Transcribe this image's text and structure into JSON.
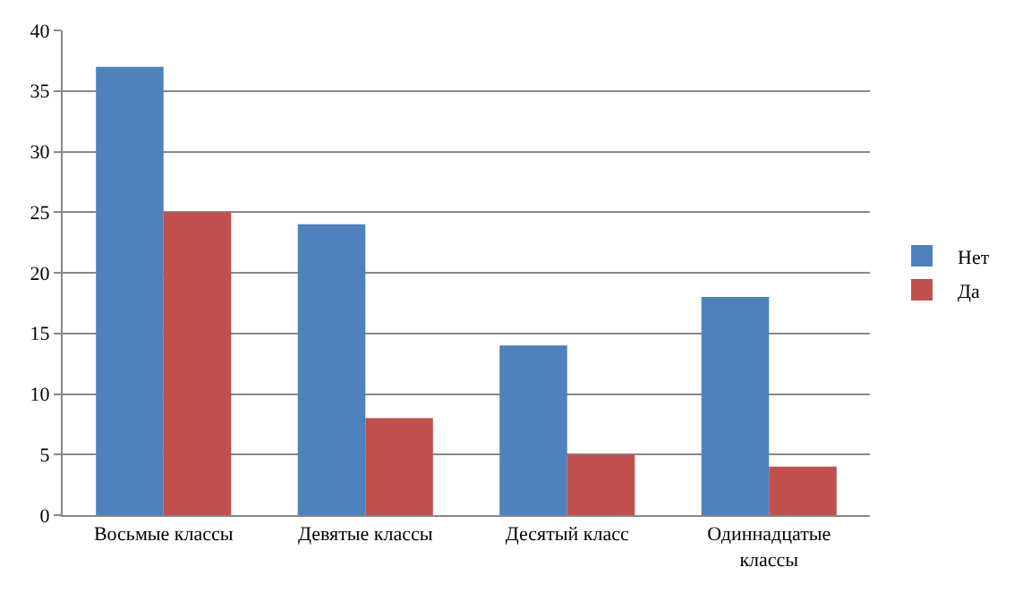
{
  "chart_data": {
    "type": "bar",
    "categories": [
      "Восьмые классы",
      "Девятые классы",
      "Десятый класс",
      "Одиннадцатые классы"
    ],
    "series": [
      {
        "name": "Нет",
        "color": "#4f81bd",
        "values": [
          37,
          24,
          14,
          18
        ]
      },
      {
        "name": "Да",
        "color": "#c0504d",
        "values": [
          25,
          8,
          5,
          4
        ]
      }
    ],
    "ylim": [
      0,
      40
    ],
    "yticks": [
      0,
      5,
      10,
      15,
      20,
      25,
      30,
      35,
      40
    ],
    "grid": "y",
    "legend": "right"
  }
}
